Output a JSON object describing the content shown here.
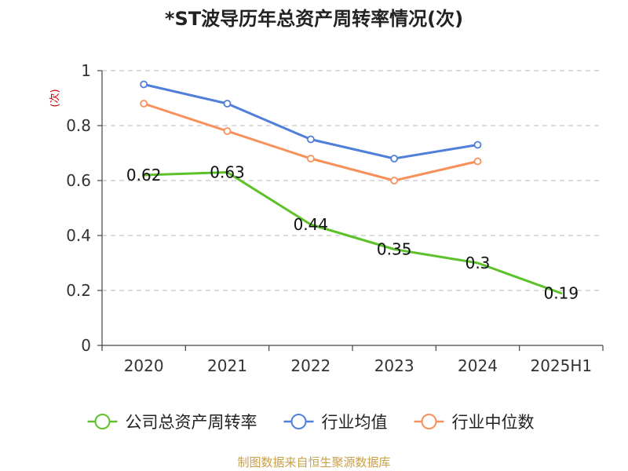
{
  "chart_data": {
    "type": "line",
    "title": "*ST波导历年总资产周转率情况(次)",
    "ylabel": "(次)",
    "categories": [
      "2020",
      "2021",
      "2022",
      "2023",
      "2024",
      "2025H1"
    ],
    "ylim": [
      0,
      1
    ],
    "yticks": [
      "0",
      "0.2",
      "0.4",
      "0.6",
      "0.8",
      "1"
    ],
    "grid": true,
    "legend_position": "bottom",
    "series": [
      {
        "name": "公司总资产周转率",
        "color": "#5dc12a",
        "values": [
          0.62,
          0.63,
          0.44,
          0.35,
          0.3,
          0.19
        ],
        "labels": [
          "0.62",
          "0.63",
          "0.44",
          "0.35",
          "0.3",
          "0.19"
        ],
        "markers": false
      },
      {
        "name": "行业均值",
        "color": "#4f7fdb",
        "values": [
          0.95,
          0.88,
          0.75,
          0.68,
          0.73,
          null
        ],
        "markers": true
      },
      {
        "name": "行业中位数",
        "color": "#f7905a",
        "values": [
          0.88,
          0.78,
          0.68,
          0.6,
          0.67,
          null
        ],
        "markers": true
      }
    ],
    "source": "制图数据来自恒生聚源数据库"
  }
}
